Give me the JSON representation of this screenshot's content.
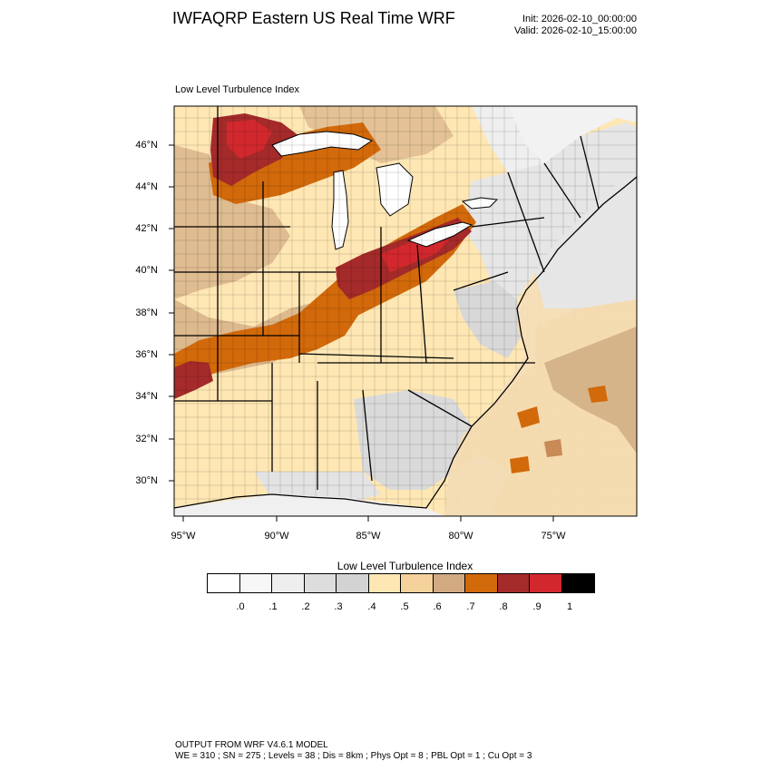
{
  "header": {
    "title": "IWFAQRP Eastern US Real Time WRF",
    "init": "Init: 2026-02-10_00:00:00",
    "valid": "Valid: 2026-02-10_15:00:00"
  },
  "map": {
    "label": "Low Level Turbulence Index",
    "lat_labels": [
      "46°N",
      "44°N",
      "42°N",
      "40°N",
      "38°N",
      "36°N",
      "34°N",
      "32°N",
      "30°N"
    ],
    "lon_labels": [
      "95°W",
      "90°W",
      "85°W",
      "80°W",
      "75°W"
    ],
    "colors": {
      "ocean_light": "#e8e8e8",
      "ocean_white": "#ffffff",
      "land_05": "#ffe7b4",
      "land_06": "#f5d29b",
      "land_07": "#d2aa82",
      "band_08": "#d2690a",
      "band_09": "#a52a2a",
      "band_10": "#d2282d",
      "gray_03": "#dcdcdc",
      "gray_04": "#d3d3d3"
    }
  },
  "colorbar": {
    "title": "Low Level Turbulence Index",
    "colors": [
      "#ffffff",
      "#f7f7f7",
      "#eeeeee",
      "#dddddd",
      "#d3d3d3",
      "#ffe7b4",
      "#f5d29b",
      "#d2aa82",
      "#d2690a",
      "#a52a2a",
      "#d2282d",
      "#000000"
    ],
    "ticks": [
      ".0",
      ".1",
      ".2",
      ".3",
      ".4",
      ".5",
      ".6",
      ".7",
      ".8",
      ".9",
      "1"
    ]
  },
  "footer": {
    "line1": "OUTPUT FROM WRF V4.6.1 MODEL",
    "line2": "WE = 310 ; SN = 275 ; Levels = 38 ; Dis = 8km ; Phys Opt = 8 ; PBL Opt = 1 ; Cu Opt = 3"
  }
}
